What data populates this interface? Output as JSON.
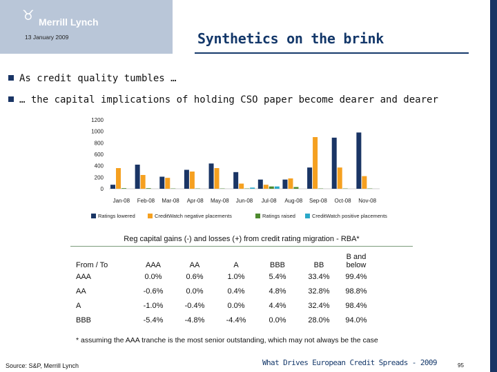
{
  "header": {
    "brand": "Merrill Lynch",
    "date": "13 January 2009",
    "title": "Synthetics on the brink"
  },
  "bullets": [
    "As credit quality tumbles …",
    "… the capital implications of holding CSO paper become dearer and dearer"
  ],
  "chart_data": {
    "type": "bar",
    "categories": [
      "Jan-08",
      "Feb-08",
      "Mar-08",
      "Apr-08",
      "May-08",
      "Jun-08",
      "Jul-08",
      "Aug-08",
      "Sep-08",
      "Oct-08",
      "Nov-08"
    ],
    "ylim": [
      0,
      1200
    ],
    "yticks": [
      "0",
      "200",
      "400",
      "600",
      "800",
      "1000",
      "1200"
    ],
    "series": [
      {
        "name": "Ratings lowered",
        "color": "#1a3565",
        "values": [
          70,
          420,
          210,
          330,
          440,
          290,
          160,
          160,
          370,
          890,
          980
        ]
      },
      {
        "name": "CreditWatch negative placements",
        "color": "#f5a020",
        "values": [
          360,
          240,
          190,
          300,
          360,
          90,
          70,
          180,
          900,
          370,
          220
        ]
      },
      {
        "name": "Ratings raised",
        "color": "#4e8a2e",
        "values": [
          10,
          10,
          5,
          5,
          5,
          5,
          40,
          30,
          5,
          5,
          5
        ]
      },
      {
        "name": "CreditWatch positive placements",
        "color": "#2aa8c8",
        "values": [
          0,
          0,
          0,
          0,
          0,
          20,
          40,
          0,
          0,
          0,
          0
        ]
      }
    ]
  },
  "table": {
    "title": "Reg capital gains (-) and losses (+) from credit rating migration - RBA*",
    "headers": [
      "From / To",
      "AAA",
      "AA",
      "A",
      "BBB",
      "BB",
      "B and below"
    ],
    "rows": [
      [
        "AAA",
        "0.0%",
        "0.6%",
        "1.0%",
        "5.4%",
        "33.4%",
        "99.4%"
      ],
      [
        "AA",
        "-0.6%",
        "0.0%",
        "0.4%",
        "4.8%",
        "32.8%",
        "98.8%"
      ],
      [
        "A",
        "-1.0%",
        "-0.4%",
        "0.0%",
        "4.4%",
        "32.4%",
        "98.4%"
      ],
      [
        "BBB",
        "-5.4%",
        "-4.8%",
        "-4.4%",
        "0.0%",
        "28.0%",
        "94.0%"
      ]
    ]
  },
  "footnote": "* assuming the AAA tranche is the most senior outstanding, which may not always be the case",
  "source": "Source: S&P, Merrill Lynch",
  "footer": {
    "title": "What Drives European Credit Spreads - 2009",
    "page": "95"
  }
}
